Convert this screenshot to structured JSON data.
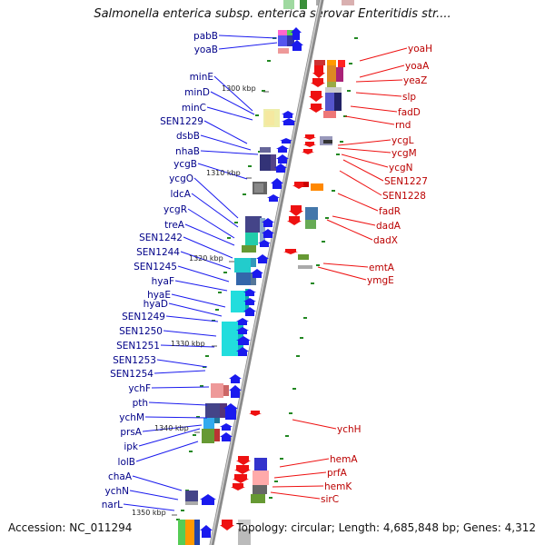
{
  "header": {
    "title": "Salmonella enterica subsp. enterica serovar Enteritidis str...."
  },
  "footer": {
    "accession": "Accession: NC_011294",
    "topology": "Topology: circular; Length: 4,685,848 bp; Genes: 4,312"
  },
  "colors": {
    "left_strand": "#1a1aee",
    "right_strand": "#ee1111",
    "backbone": "#999999",
    "tick": "#228822"
  },
  "scale": {
    "unit": "kbp",
    "ticks": [
      "1300 kbp",
      "1310 kbp",
      "1320 kbp",
      "1330 kbp",
      "1340 kbp",
      "1350 kbp"
    ]
  },
  "genes": {
    "left": [
      "pabB",
      "yoaB",
      "minE",
      "minD",
      "minC",
      "SEN1229",
      "dsbB",
      "nhaB",
      "ycgB",
      "ycgO",
      "ldcA",
      "ycgR",
      "treA",
      "SEN1242",
      "SEN1244",
      "SEN1245",
      "hyaF",
      "hyaE",
      "hyaD",
      "SEN1249",
      "SEN1250",
      "SEN1251",
      "SEN1253",
      "SEN1254",
      "ychF",
      "pth",
      "ychM",
      "prsA",
      "ipk",
      "lolB",
      "chaA",
      "ychN",
      "narL"
    ],
    "right": [
      "yoaH",
      "yoaA",
      "yeaZ",
      "slp",
      "fadD",
      "rnd",
      "ycgL",
      "ycgM",
      "ycgN",
      "SEN1227",
      "SEN1228",
      "fadR",
      "dadA",
      "dadX",
      "emtA",
      "ymgE",
      "ychH",
      "hemA",
      "prfA",
      "hemK",
      "sirC"
    ]
  }
}
